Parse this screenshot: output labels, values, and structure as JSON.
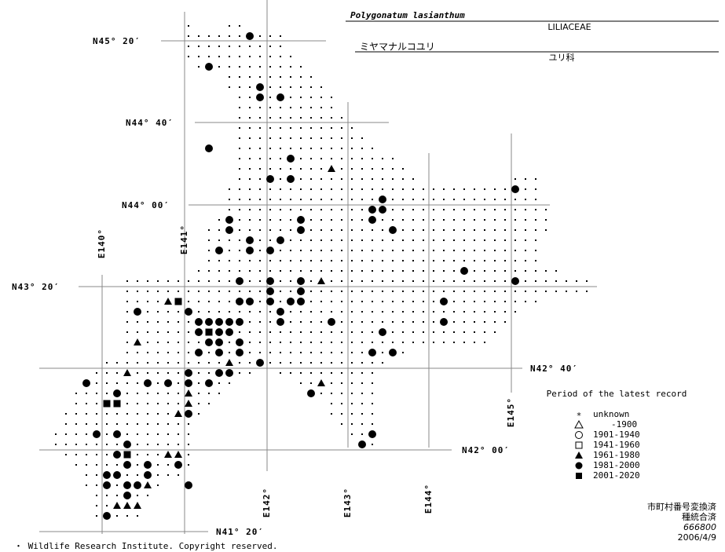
{
  "title": "Polygonatum lasianthum",
  "family": "LILIACEAE",
  "japanese_name": "ミヤマナルコユリ",
  "japanese_family": "ユリ科",
  "latitude_labels": [
    "N45° 20′",
    "N44° 40′",
    "N44° 00′",
    "N43° 20′",
    "N42° 40′",
    "N42° 00′",
    "N41° 20′"
  ],
  "longitude_labels": [
    "E140°",
    "E141°",
    "E142°",
    "E143°",
    "E144°",
    "E145°"
  ],
  "legend": {
    "title": "Period of the latest record",
    "items": [
      "unknown",
      "-1900",
      "1901-1940",
      "1941-1960",
      "1961-1980",
      "1981-2000",
      "2001-2020"
    ]
  },
  "footer": {
    "notes": [
      "市町村番号変換済",
      "種統合済",
      "666800",
      "2006/4/9"
    ]
  },
  "copyright": "・ Wildlife Research Institute. Copyright reserved."
}
